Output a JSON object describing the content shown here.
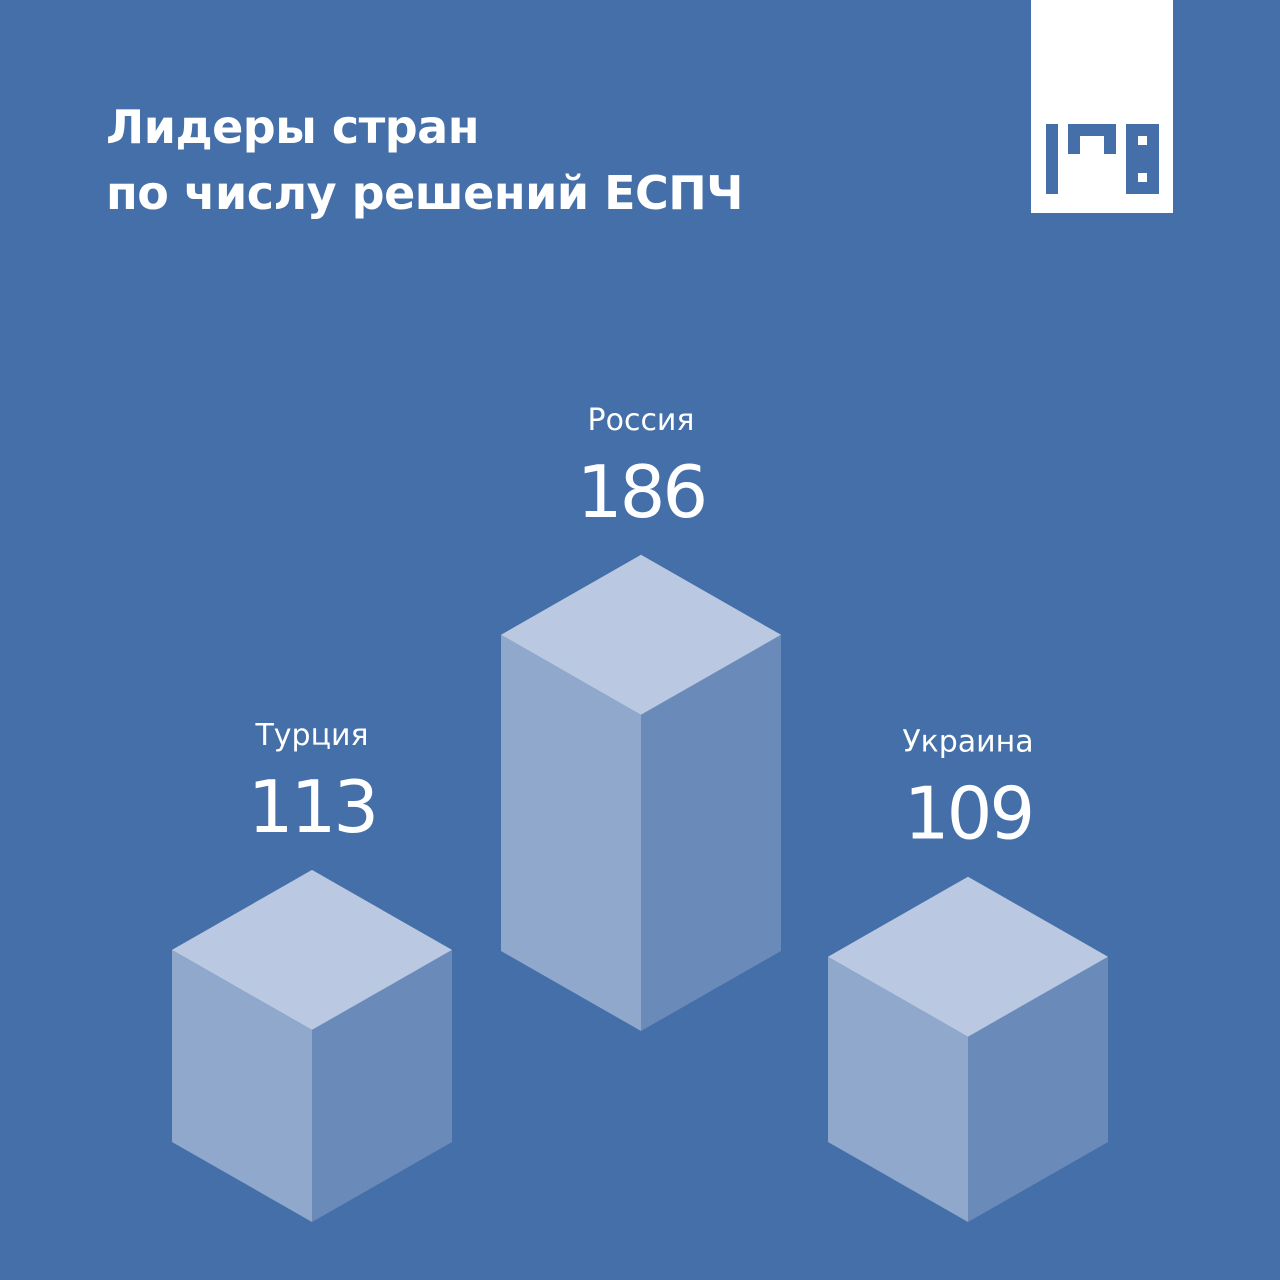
{
  "header": {
    "title_line1": "Лидеры стран",
    "title_line2": "по числу решений ЕСПЧ"
  },
  "logo": {
    "icon": "brand-logo-icon"
  },
  "colors": {
    "background": "#456fa8",
    "box_top": "#bac9e1",
    "box_left": "#8fa8cc",
    "box_right": "#6a8bba",
    "text": "#ffffff"
  },
  "chart_data": {
    "type": "bar",
    "style": "isometric-3d",
    "categories": [
      "Турция",
      "Россия",
      "Украина"
    ],
    "values": [
      113,
      186,
      109
    ],
    "title": "Лидеры стран по числу решений ЕСПЧ",
    "xlabel": "",
    "ylabel": ""
  }
}
